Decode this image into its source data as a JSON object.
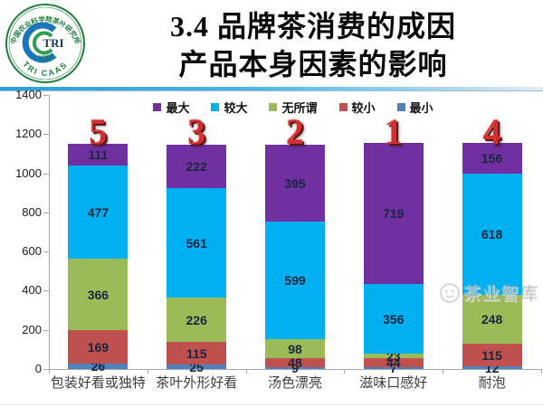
{
  "header": {
    "logo": {
      "top_arc": "中国农业科学院茶叶研究所",
      "center": "TRI",
      "year": "- 1958 -",
      "bottom_arc": "TRI CAAS"
    },
    "title_line1": "3.4 品牌茶消费的成因",
    "title_line2": "产品本身因素的影响"
  },
  "watermark": {
    "text": "茶业智库"
  },
  "chart_data": {
    "type": "bar",
    "stacked": true,
    "title": "",
    "categories": [
      "包装好看或独特",
      "茶叶外形好看",
      "汤色漂亮",
      "滋味口感好",
      "耐泡"
    ],
    "rank_labels": [
      "5",
      "3",
      "2",
      "1",
      "4"
    ],
    "series": [
      {
        "name": "最小",
        "color": "#4F81BD",
        "values": [
          26,
          25,
          9,
          7,
          12
        ]
      },
      {
        "name": "较小",
        "color": "#C0504D",
        "values": [
          169,
          115,
          48,
          44,
          115
        ]
      },
      {
        "name": "无所谓",
        "color": "#9BBB59",
        "values": [
          366,
          226,
          98,
          23,
          248
        ]
      },
      {
        "name": "较大",
        "color": "#00B0F0",
        "values": [
          477,
          561,
          599,
          356,
          618
        ]
      },
      {
        "name": "最大",
        "color": "#7030A0",
        "values": [
          111,
          222,
          395,
          719,
          156
        ]
      }
    ],
    "legend": [
      "最大",
      "较大",
      "无所谓",
      "较小",
      "最小"
    ],
    "legend_position": "top",
    "ylim": [
      0,
      1400
    ],
    "yticks": [
      0,
      200,
      400,
      600,
      800,
      1000,
      1200,
      1400
    ],
    "grid": false,
    "bar_total": 1149
  }
}
